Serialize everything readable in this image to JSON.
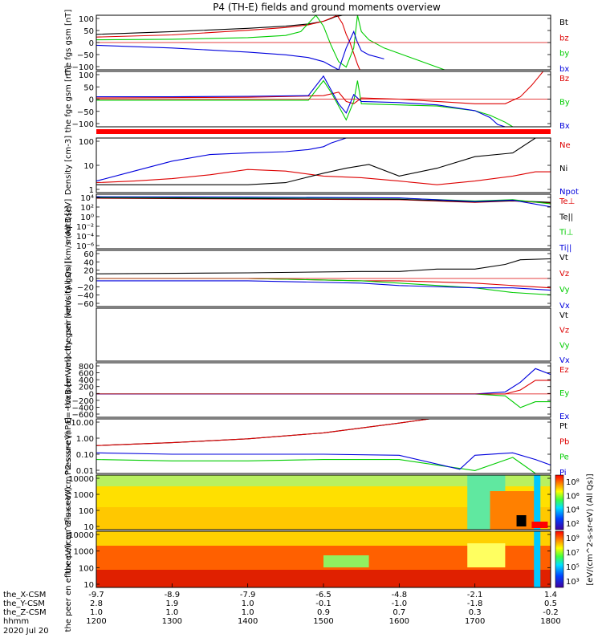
{
  "title": "P4 (TH-E) fields and ground moments overview",
  "colors": {
    "black": "#000000",
    "red": "#dd0000",
    "green": "#00cc00",
    "blue": "#0000dd"
  },
  "chart_data": [
    {
      "type": "line",
      "ylabel": "the fgs gsm [nT]",
      "ylim": [
        -100,
        100
      ],
      "yticks": [
        "100",
        "50",
        "0",
        "−50",
        "−100"
      ],
      "series": [
        {
          "name": "Bt",
          "color": "#000000",
          "x": [
            1200,
            1300,
            1400,
            1450,
            1480,
            1500,
            1510,
            1515,
            1525,
            1530,
            1535,
            1540,
            1545
          ],
          "values": [
            30,
            40,
            52,
            60,
            68,
            78,
            88,
            94,
            100,
            100,
            100,
            100,
            100
          ]
        },
        {
          "name": "bz",
          "color": "#dd0000",
          "x": [
            1200,
            1300,
            1400,
            1450,
            1480,
            1500,
            1512,
            1518,
            1525,
            1530,
            1535,
            1540,
            1545,
            1548
          ],
          "values": [
            20,
            28,
            45,
            55,
            65,
            78,
            92,
            100,
            70,
            30,
            0,
            -40,
            -80,
            -100
          ]
        },
        {
          "name": "by",
          "color": "#00cc00",
          "x": [
            1200,
            1300,
            1400,
            1450,
            1470,
            1480,
            1490,
            1500,
            1510,
            1520,
            1530,
            1540,
            1545,
            1550,
            1560,
            1580,
            1620,
            1660
          ],
          "values": [
            10,
            12,
            18,
            26,
            40,
            70,
            100,
            60,
            -10,
            -70,
            -90,
            -20,
            100,
            40,
            10,
            -20,
            -60,
            -100
          ]
        },
        {
          "name": "bx",
          "color": "#0000dd",
          "x": [
            1200,
            1300,
            1400,
            1450,
            1480,
            1500,
            1510,
            1520,
            1525,
            1530,
            1535,
            1540,
            1545,
            1550,
            1560,
            1580
          ],
          "values": [
            -10,
            -20,
            -35,
            -45,
            -55,
            -70,
            -85,
            -100,
            -60,
            -20,
            10,
            40,
            0,
            -30,
            -45,
            -60
          ]
        }
      ]
    },
    {
      "type": "line",
      "ylabel": "the fge gsm [nT]",
      "ylim": [
        -120,
        120
      ],
      "yticks": [
        "100",
        "50",
        "0",
        "−50",
        "−100"
      ],
      "series": [
        {
          "name": "Bz",
          "color": "#dd0000",
          "x": [
            1200,
            1400,
            1500,
            1520,
            1530,
            1540,
            1550,
            1600,
            1650,
            1700,
            1740,
            1760,
            1775,
            1785,
            1790
          ],
          "values": [
            5,
            8,
            15,
            30,
            -10,
            -20,
            5,
            0,
            -10,
            -20,
            -20,
            10,
            60,
            100,
            120
          ]
        },
        {
          "name": "By",
          "color": "#00cc00",
          "x": [
            1200,
            1300,
            1400,
            1480,
            1500,
            1510,
            1520,
            1530,
            1540,
            1545,
            1550,
            1600,
            1650,
            1700,
            1720,
            1740,
            1750,
            1760
          ],
          "values": [
            -5,
            -5,
            -5,
            -5,
            80,
            30,
            -30,
            -90,
            -10,
            80,
            -20,
            -25,
            -30,
            -50,
            -70,
            -100,
            -120,
            -120
          ]
        },
        {
          "name": "Bx",
          "color": "#0000dd",
          "x": [
            1200,
            1300,
            1400,
            1480,
            1500,
            1510,
            1520,
            1530,
            1540,
            1550,
            1600,
            1650,
            1700,
            1720,
            1730,
            1740
          ],
          "values": [
            10,
            10,
            12,
            15,
            100,
            40,
            -20,
            -60,
            20,
            -10,
            -15,
            -25,
            -50,
            -80,
            -110,
            -120
          ]
        }
      ]
    },
    {
      "type": "line",
      "ylabel": "Density [cm-3]",
      "log_scale": true,
      "ylim": [
        0.1,
        200
      ],
      "yticks": [
        "100",
        "10",
        "1"
      ],
      "series": [
        {
          "name": "Ne",
          "color": "#dd0000",
          "x": [
            1200,
            1250,
            1300,
            1350,
            1400,
            1450,
            1500,
            1550,
            1600,
            1650,
            1700,
            1750,
            1780,
            1800
          ],
          "values": [
            0.4,
            0.5,
            0.7,
            1.2,
            2.5,
            2,
            1,
            0.8,
            0.5,
            0.3,
            0.5,
            1,
            1.8,
            1.8
          ]
        },
        {
          "name": "Ni",
          "color": "#000000",
          "x": [
            1200,
            1250,
            1300,
            1350,
            1400,
            1450,
            1500,
            1530,
            1560,
            1600,
            1650,
            1700,
            1750,
            1780,
            1800
          ],
          "values": [
            0.3,
            0.3,
            0.3,
            0.3,
            0.3,
            0.4,
            1.5,
            3,
            5,
            1,
            3,
            15,
            25,
            200,
            200
          ]
        },
        {
          "name": "Npot",
          "color": "#0000dd",
          "x": [
            1200,
            1250,
            1300,
            1350,
            1400,
            1450,
            1480,
            1500,
            1510,
            1530,
            1560
          ],
          "values": [
            0.5,
            2,
            8,
            20,
            25,
            30,
            40,
            60,
            100,
            200,
            200
          ]
        }
      ]
    },
    {
      "type": "line",
      "ylabel": "moqt3 [eV]",
      "log_scale": true,
      "ylim": [
        1e-07,
        20000
      ],
      "yticks": [
        "10⁴",
        "10²",
        "10⁰",
        "10⁻²",
        "10⁻⁴",
        "10⁻⁶"
      ],
      "series": [
        {
          "name": "Te⊥",
          "color": "#dd0000",
          "x": [
            1200,
            1400,
            1600,
            1700,
            1750,
            1800
          ],
          "values": [
            3000,
            2000,
            1500,
            400,
            800,
            300
          ]
        },
        {
          "name": "Te||",
          "color": "#000000",
          "x": [
            1200,
            1400,
            1600,
            1700,
            1750,
            1800
          ],
          "values": [
            3500,
            2500,
            1800,
            500,
            900,
            400
          ]
        },
        {
          "name": "Ti⊥",
          "color": "#00cc00",
          "x": [
            1200,
            1400,
            1600,
            1700,
            1750,
            1800
          ],
          "values": [
            5000,
            4000,
            3000,
            800,
            1500,
            200
          ]
        },
        {
          "name": "Ti||",
          "color": "#0000dd",
          "x": [
            1200,
            1400,
            1600,
            1700,
            1750,
            1800
          ],
          "values": [
            6000,
            5000,
            3500,
            600,
            1200,
            50
          ]
        }
      ]
    },
    {
      "type": "line",
      "ylabel": "the peir velocity gsm [km/s (All Qs)]",
      "ylim": [
        -60,
        60
      ],
      "yticks": [
        "60",
        "40",
        "20",
        "0",
        "−20",
        "−40",
        "−60"
      ],
      "series": [
        {
          "name": "Vt",
          "color": "#000000",
          "x": [
            1200,
            1400,
            1550,
            1600,
            1650,
            1700,
            1740,
            1760,
            1800
          ],
          "values": [
            10,
            12,
            15,
            15,
            20,
            20,
            30,
            40,
            42
          ]
        },
        {
          "name": "Vz",
          "color": "#dd0000",
          "x": [
            1200,
            1400,
            1550,
            1600,
            1700,
            1750,
            1800
          ],
          "values": [
            0,
            0,
            -5,
            -5,
            -10,
            -15,
            -20
          ]
        },
        {
          "name": "Vy",
          "color": "#00cc00",
          "x": [
            1200,
            1400,
            1550,
            1600,
            1700,
            1750,
            1800
          ],
          "values": [
            0,
            0,
            -5,
            -10,
            -20,
            -30,
            -35
          ]
        },
        {
          "name": "Vx",
          "color": "#0000dd",
          "x": [
            1200,
            1400,
            1550,
            1600,
            1700,
            1750,
            1800
          ],
          "values": [
            -5,
            -5,
            -10,
            -15,
            -20,
            -20,
            -25
          ]
        }
      ]
    },
    {
      "type": "line",
      "ylabel": "the peer velocity gsm [km/s (All Qs)]",
      "ylim": [
        0,
        1
      ],
      "yticks": [],
      "series": [
        {
          "name": "Vt",
          "color": "#000000"
        },
        {
          "name": "Vz",
          "color": "#dd0000"
        },
        {
          "name": "Vy",
          "color": "#00cc00"
        },
        {
          "name": "Vx",
          "color": "#0000dd"
        }
      ]
    },
    {
      "type": "line",
      "ylabel": "E=−VxB [mV/m]",
      "ylim": [
        -600,
        800
      ],
      "yticks": [
        "800",
        "600",
        "400",
        "200",
        "0",
        "−200",
        "−400",
        "−600"
      ],
      "series": [
        {
          "name": "Ez",
          "color": "#dd0000",
          "x": [
            1200,
            1700,
            1740,
            1760,
            1780,
            1800
          ],
          "values": [
            0,
            0,
            0,
            100,
            350,
            350
          ]
        },
        {
          "name": "Ey",
          "color": "#00cc00",
          "x": [
            1200,
            1700,
            1740,
            1760,
            1780,
            1800
          ],
          "values": [
            0,
            0,
            -50,
            -350,
            -200,
            -200
          ]
        },
        {
          "name": "Ex",
          "color": "#0000dd",
          "x": [
            1200,
            1700,
            1740,
            1760,
            1780,
            1800
          ],
          "values": [
            0,
            0,
            50,
            300,
            650,
            500
          ]
        }
      ]
    },
    {
      "type": "line",
      "ylabel": "Pressure [nPa]",
      "log_scale": true,
      "ylim": [
        0.005,
        40
      ],
      "yticks": [
        "10.00",
        "1.00",
        "0.10",
        "0.01"
      ],
      "series": [
        {
          "name": "Pt",
          "color": "#000000",
          "x": [
            1200,
            1300,
            1400,
            1500,
            1600,
            1640
          ],
          "values": [
            0.5,
            0.8,
            1.5,
            4,
            20,
            40
          ]
        },
        {
          "name": "Pb",
          "color": "#dd0000",
          "x": [
            1200,
            1300,
            1400,
            1500,
            1600,
            1640
          ],
          "values": [
            0.5,
            0.8,
            1.5,
            4,
            20,
            40
          ]
        },
        {
          "name": "Pe",
          "color": "#00cc00",
          "x": [
            1200,
            1300,
            1400,
            1500,
            1600,
            1700,
            1750,
            1780,
            1800
          ],
          "values": [
            0.05,
            0.04,
            0.04,
            0.05,
            0.05,
            0.008,
            0.07,
            0.003,
            0.001
          ]
        },
        {
          "name": "Pi",
          "color": "#0000dd",
          "x": [
            1200,
            1300,
            1400,
            1500,
            1600,
            1680,
            1700,
            1750,
            1780,
            1800
          ],
          "values": [
            0.15,
            0.12,
            0.12,
            0.12,
            0.1,
            0.01,
            0.1,
            0.15,
            0.05,
            0.02
          ]
        }
      ]
    },
    {
      "type": "heatmap",
      "ylabel": "the peir en eflux eV/(cm^2-s-sr-eV)",
      "log_scale": true,
      "yticks": [
        "10000",
        "1000",
        "100",
        "10"
      ],
      "colorbar_ticks": [
        "10⁸",
        "10⁶",
        "10⁴",
        "10²"
      ]
    },
    {
      "type": "heatmap",
      "ylabel": "the peer en eflux eV/(cm^2-s-sr-eV)",
      "log_scale": true,
      "yticks": [
        "10000",
        "1000",
        "100",
        "10"
      ],
      "colorbar_ticks": [
        "10⁹",
        "10⁷",
        "10⁵",
        "10³"
      ]
    }
  ],
  "colorbar_label": "[eV/(cm^2-s-sr-eV) (All Qs)]",
  "xaxis": {
    "row_labels": [
      "the_X-CSM",
      "the_Y-CSM",
      "the_Z-CSM",
      "hhmm",
      "2020 Jul 20"
    ],
    "rows": [
      [
        "-9.7",
        "-8.9",
        "-7.9",
        "-6.5",
        "-4.8",
        "-2.1",
        "1.4"
      ],
      [
        "2.8",
        "1.9",
        "1.0",
        "-0.1",
        "-1.0",
        "-1.8",
        "0.5"
      ],
      [
        "1.0",
        "1.0",
        "1.0",
        "0.9",
        "0.7",
        "0.3",
        "-0.2"
      ],
      [
        "1200",
        "1300",
        "1400",
        "1500",
        "1600",
        "1700",
        "1800"
      ]
    ],
    "xlim": [
      1200,
      1800
    ]
  }
}
